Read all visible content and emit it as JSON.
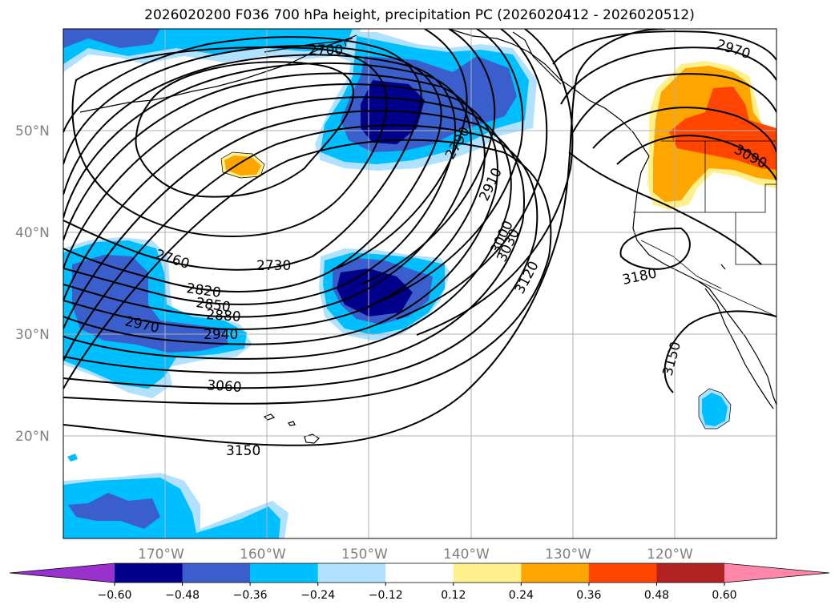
{
  "title": "2026020200 F036 700 hPa height, precipitation PC (2026020412 - 2026020512)",
  "lat_labels": [
    "50°N",
    "40°N",
    "30°N",
    "20°N"
  ],
  "lon_labels": [
    "170°W",
    "160°W",
    "150°W",
    "140°W",
    "130°W",
    "120°W"
  ],
  "contour_labels": [
    "2700",
    "2970",
    "2790",
    "2910",
    "3090",
    "3000",
    "3030",
    "3120",
    "2760",
    "2730",
    "2820",
    "2850",
    "2880",
    "3180",
    "2970",
    "2940",
    "3150",
    "3060",
    "3150"
  ],
  "colorbar": {
    "ticks": [
      "−0.60",
      "−0.48",
      "−0.36",
      "−0.24",
      "−0.12",
      "0.12",
      "0.24",
      "0.36",
      "0.48",
      "0.60"
    ],
    "colors": [
      "#9932cc",
      "#00008b",
      "#3a5fcd",
      "#00bfff",
      "#b0e2ff",
      "#ffffff",
      "#fff08c",
      "#ffa500",
      "#ff4500",
      "#b22222",
      "#ff88aa"
    ]
  }
}
